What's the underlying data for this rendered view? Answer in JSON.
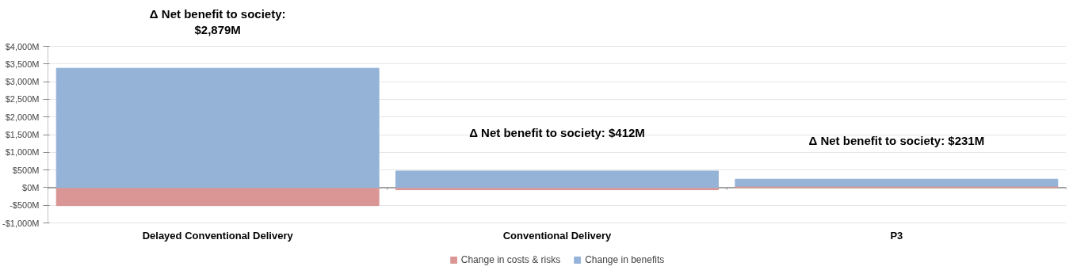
{
  "chart_data": {
    "type": "bar",
    "categories": [
      "Delayed Conventional Delivery",
      "Conventional Delivery",
      "P3"
    ],
    "stacked": true,
    "series": [
      {
        "name": "Change in costs & risks",
        "color": "#da9694",
        "values": [
          -510,
          -60,
          40
        ]
      },
      {
        "name": "Change in benefits",
        "color": "#95b3d7",
        "values": [
          3380,
          470,
          200
        ]
      }
    ],
    "ylim": [
      -1000,
      4000
    ],
    "yticks": [
      {
        "value": -1000,
        "label": "-$1,000M"
      },
      {
        "value": -500,
        "label": "-$500M"
      },
      {
        "value": 0,
        "label": "$0M"
      },
      {
        "value": 500,
        "label": "$500M"
      },
      {
        "value": 1000,
        "label": "$1,000M"
      },
      {
        "value": 1500,
        "label": "$1,500M"
      },
      {
        "value": 2000,
        "label": "$2,000M"
      },
      {
        "value": 2500,
        "label": "$2,500M"
      },
      {
        "value": 3000,
        "label": "$3,000M"
      },
      {
        "value": 3500,
        "label": "$3,500M"
      },
      {
        "value": 4000,
        "label": "$4,000M"
      }
    ],
    "grid": "y",
    "legend": "bottom",
    "annotations": [
      "Δ Net benefit to society:\n$2,879M",
      "Δ Net benefit to society: $412M",
      "Δ Net benefit to society: $231M"
    ]
  }
}
